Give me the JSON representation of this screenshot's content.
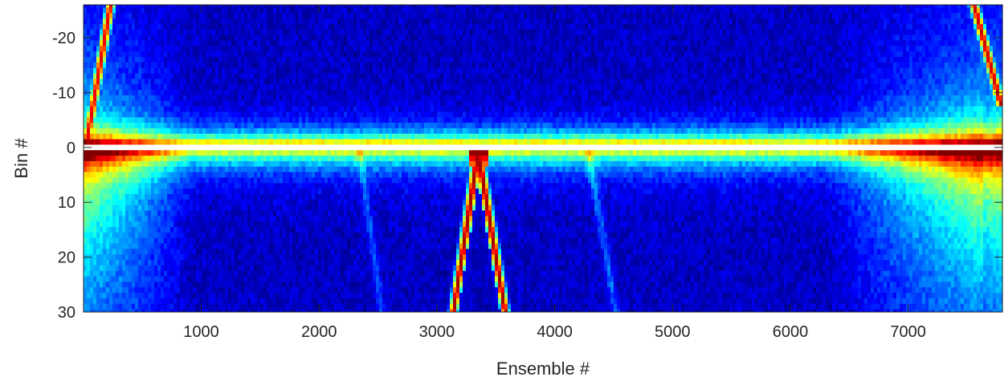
{
  "chart_data": {
    "type": "heatmap",
    "title": "",
    "xlabel": "Ensemble #",
    "ylabel": "Bin #",
    "xlim": [
      1,
      7800
    ],
    "ylim": [
      -26,
      30
    ],
    "y_reversed": true,
    "x_ticks": [
      1000,
      2000,
      3000,
      4000,
      5000,
      6000,
      7000
    ],
    "x_tick_labels": [
      "1000",
      "2000",
      "3000",
      "4000",
      "5000",
      "6000",
      "7000"
    ],
    "y_ticks": [
      -20,
      -10,
      0,
      10,
      20,
      30
    ],
    "y_tick_labels": [
      "-20",
      "-10",
      "0",
      "10",
      "20",
      "30"
    ],
    "colormap": "jet",
    "blank_bin": 0,
    "gridlines": false,
    "features": {
      "bright_edges": [
        {
          "x_start": 1,
          "x_end": 1000,
          "intensity": 0.75
        },
        {
          "x_start": 6400,
          "x_end": 7800,
          "intensity": 0.75
        }
      ],
      "v_track": {
        "apex_x": 3350,
        "apex_bin": 1,
        "left_bottom_x": 3140,
        "right_bottom_x": 3580,
        "bottom_bin": 30
      },
      "upper_left_track": {
        "x_at_bin_0": 20,
        "x_at_bin_minus26": 230
      },
      "upper_right_track": {
        "x_at_bin_minus26": 7560,
        "x_at_bin_minus10": 7760
      }
    }
  }
}
